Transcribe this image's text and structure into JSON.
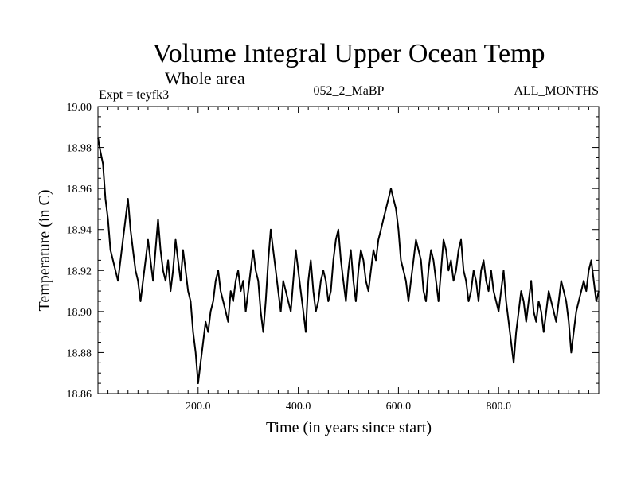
{
  "chart_data": {
    "type": "line",
    "title": "Volume Integral Upper Ocean Temp",
    "subtitle": "Whole area",
    "experiment": "Expt = teyfk3",
    "run_label": "052_2_MaBP",
    "months_label": "ALL_MONTHS",
    "xlabel": "Time (in years since start)",
    "ylabel": "Temperature (in C)",
    "xlim": [
      0,
      1000
    ],
    "ylim": [
      18.86,
      19.0
    ],
    "x_ticks": [
      200,
      400,
      600,
      800
    ],
    "x_tick_labels": [
      "200.0",
      "400.0",
      "600.0",
      "800.0"
    ],
    "y_ticks": [
      18.86,
      18.88,
      18.9,
      18.92,
      18.94,
      18.96,
      18.98,
      19.0
    ],
    "y_tick_labels": [
      "18.86",
      "18.88",
      "18.90",
      "18.92",
      "18.94",
      "18.96",
      "18.98",
      "19.00"
    ],
    "grid": false,
    "series": [
      {
        "name": "Volume Integral Upper Ocean Temp",
        "color": "#000000",
        "x": [
          0,
          5,
          10,
          15,
          20,
          25,
          30,
          35,
          40,
          45,
          50,
          55,
          60,
          65,
          70,
          75,
          80,
          85,
          90,
          95,
          100,
          105,
          110,
          115,
          120,
          125,
          130,
          135,
          140,
          145,
          150,
          155,
          160,
          165,
          170,
          175,
          180,
          185,
          190,
          195,
          200,
          205,
          210,
          215,
          220,
          225,
          230,
          235,
          240,
          245,
          250,
          255,
          260,
          265,
          270,
          275,
          280,
          285,
          290,
          295,
          300,
          305,
          310,
          315,
          320,
          325,
          330,
          335,
          340,
          345,
          350,
          355,
          360,
          365,
          370,
          375,
          380,
          385,
          390,
          395,
          400,
          405,
          410,
          415,
          420,
          425,
          430,
          435,
          440,
          445,
          450,
          455,
          460,
          465,
          470,
          475,
          480,
          485,
          490,
          495,
          500,
          505,
          510,
          515,
          520,
          525,
          530,
          535,
          540,
          545,
          550,
          555,
          560,
          565,
          570,
          575,
          580,
          585,
          590,
          595,
          600,
          605,
          610,
          615,
          620,
          625,
          630,
          635,
          640,
          645,
          650,
          655,
          660,
          665,
          670,
          675,
          680,
          685,
          690,
          695,
          700,
          705,
          710,
          715,
          720,
          725,
          730,
          735,
          740,
          745,
          750,
          755,
          760,
          765,
          770,
          775,
          780,
          785,
          790,
          795,
          800,
          805,
          810,
          815,
          820,
          825,
          830,
          835,
          840,
          845,
          850,
          855,
          860,
          865,
          870,
          875,
          880,
          885,
          890,
          895,
          900,
          905,
          910,
          915,
          920,
          925,
          930,
          935,
          940,
          945,
          950,
          955,
          960,
          965,
          970,
          975,
          980,
          985,
          990,
          995,
          1000
        ],
        "values": [
          18.985,
          18.978,
          18.972,
          18.955,
          18.945,
          18.93,
          18.925,
          18.92,
          18.915,
          18.925,
          18.935,
          18.945,
          18.955,
          18.94,
          18.93,
          18.92,
          18.915,
          18.905,
          18.915,
          18.925,
          18.935,
          18.925,
          18.915,
          18.93,
          18.945,
          18.93,
          18.92,
          18.915,
          18.925,
          18.91,
          18.92,
          18.935,
          18.925,
          18.915,
          18.93,
          18.92,
          18.91,
          18.905,
          18.89,
          18.88,
          18.865,
          18.875,
          18.885,
          18.895,
          18.89,
          18.9,
          18.905,
          18.915,
          18.92,
          18.91,
          18.905,
          18.9,
          18.895,
          18.91,
          18.905,
          18.915,
          18.92,
          18.91,
          18.915,
          18.9,
          18.91,
          18.92,
          18.93,
          18.92,
          18.915,
          18.9,
          18.89,
          18.905,
          18.925,
          18.94,
          18.93,
          18.92,
          18.91,
          18.9,
          18.915,
          18.91,
          18.905,
          18.9,
          18.915,
          18.93,
          18.92,
          18.91,
          18.9,
          18.89,
          18.915,
          18.925,
          18.91,
          18.9,
          18.905,
          18.915,
          18.92,
          18.915,
          18.905,
          18.91,
          18.925,
          18.935,
          18.94,
          18.925,
          18.915,
          18.905,
          18.92,
          18.93,
          18.915,
          18.905,
          18.92,
          18.93,
          18.925,
          18.915,
          18.91,
          18.92,
          18.93,
          18.925,
          18.935,
          18.94,
          18.945,
          18.95,
          18.955,
          18.96,
          18.955,
          18.95,
          18.94,
          18.925,
          18.92,
          18.915,
          18.905,
          18.915,
          18.925,
          18.935,
          18.93,
          18.925,
          18.91,
          18.905,
          18.92,
          18.93,
          18.925,
          18.915,
          18.905,
          18.92,
          18.935,
          18.93,
          18.92,
          18.925,
          18.915,
          18.92,
          18.93,
          18.935,
          18.92,
          18.915,
          18.905,
          18.91,
          18.92,
          18.915,
          18.905,
          18.92,
          18.925,
          18.915,
          18.91,
          18.92,
          18.91,
          18.905,
          18.9,
          18.91,
          18.92,
          18.905,
          18.895,
          18.885,
          18.875,
          18.89,
          18.9,
          18.91,
          18.905,
          18.895,
          18.905,
          18.915,
          18.9,
          18.895,
          18.905,
          18.9,
          18.89,
          18.9,
          18.91,
          18.905,
          18.9,
          18.895,
          18.905,
          18.915,
          18.91,
          18.905,
          18.895,
          18.88,
          18.89,
          18.9,
          18.905,
          18.91,
          18.915,
          18.91,
          18.92,
          18.925,
          18.915,
          18.905,
          18.91
        ]
      }
    ]
  }
}
